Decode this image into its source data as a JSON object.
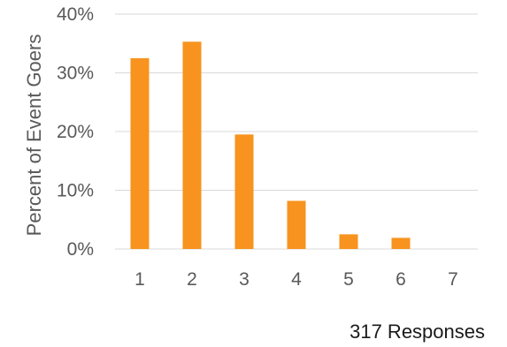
{
  "chart_data": {
    "type": "bar",
    "categories": [
      "1",
      "2",
      "3",
      "4",
      "5",
      "6",
      "7"
    ],
    "values": [
      32.5,
      35.3,
      19.5,
      8.2,
      2.5,
      1.9,
      0
    ],
    "ylabel": "Percent of Event Goers",
    "xlabel": "",
    "ylim": [
      0,
      40
    ],
    "yticks": [
      "0%",
      "10%",
      "20%",
      "30%",
      "40%"
    ],
    "grid": true,
    "legend": "none",
    "bar_color": "#F7931E"
  },
  "footnote": "317 Responses"
}
